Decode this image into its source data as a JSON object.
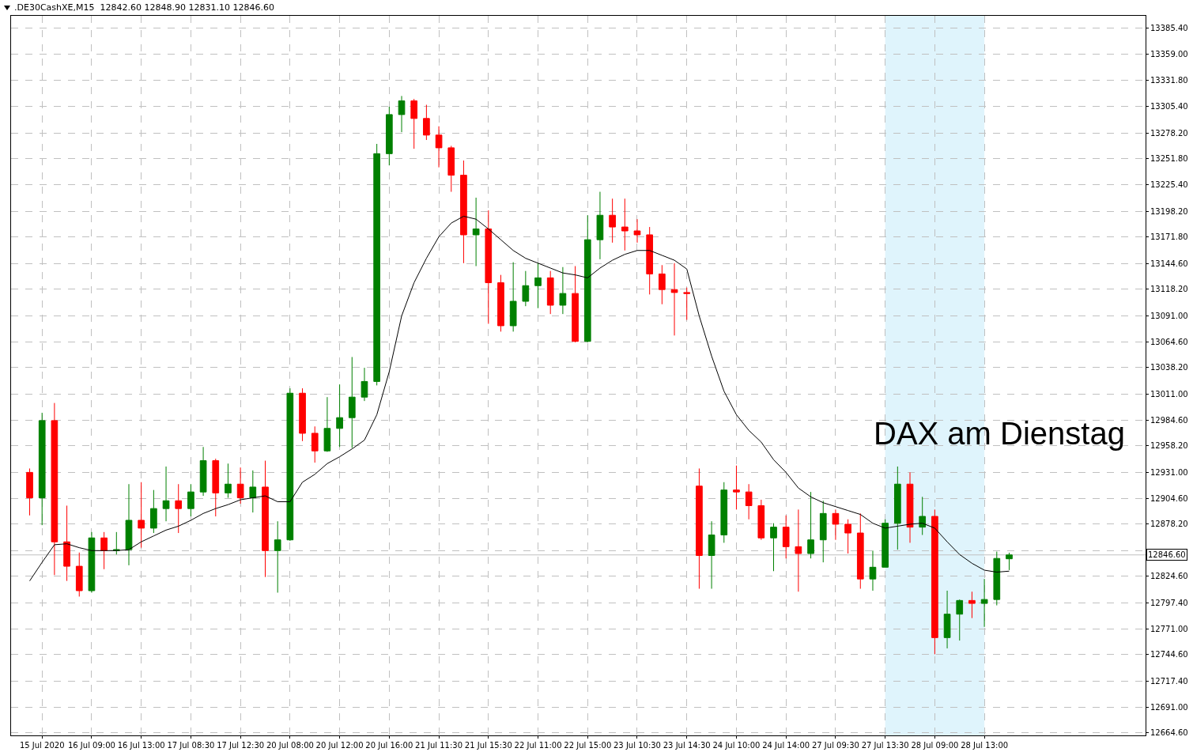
{
  "chart_data": {
    "type": "candlestick",
    "title": ".DE30CashXE,M15  12842.60 12848.90 12831.10 12846.60",
    "annotations": [
      "DAX am Dienstag"
    ],
    "categories": [
      null,
      "15 Jul 2020",
      null,
      null,
      null,
      "16 Jul 09:00",
      null,
      null,
      null,
      "16 Jul 13:00",
      null,
      null,
      null,
      "17 Jul 08:30",
      null,
      null,
      null,
      "17 Jul 12:30",
      null,
      null,
      null,
      "20 Jul 08:00",
      null,
      null,
      null,
      "20 Jul 12:00",
      null,
      null,
      null,
      "20 Jul 16:00",
      null,
      null,
      null,
      "21 Jul 11:30",
      null,
      null,
      null,
      "21 Jul 15:30",
      null,
      null,
      null,
      "22 Jul 11:00",
      null,
      null,
      null,
      "22 Jul 15:00",
      null,
      null,
      null,
      "23 Jul 10:30",
      null,
      null,
      null,
      "23 Jul 14:30",
      null,
      null,
      null,
      "24 Jul 10:00",
      null,
      null,
      null,
      "24 Jul 14:00",
      null,
      null,
      null,
      "27 Jul 09:30",
      null,
      null,
      null,
      "27 Jul 13:30",
      null,
      null,
      null,
      "28 Jul 09:00",
      null,
      null,
      null,
      "28 Jul 13:00",
      null,
      null
    ],
    "series": [
      {
        "color": "#008000",
        "ohlc": [
          null,
          [
            12905,
            12992,
            12877,
            12984
          ],
          null,
          null,
          null,
          [
            12810,
            12870,
            12808,
            12864
          ],
          null,
          [
            12851,
            12870,
            12847,
            12852
          ],
          [
            12852,
            12919,
            12836,
            12882
          ],
          null,
          [
            12874,
            12913,
            12869,
            12894
          ],
          [
            12894,
            12937,
            12881,
            12902
          ],
          null,
          [
            12894,
            12919,
            12886,
            12911
          ],
          [
            12911,
            12957,
            12907,
            12943
          ],
          null,
          [
            12910,
            12940,
            12905,
            12919
          ],
          null,
          [
            12905,
            12933,
            12890,
            12916
          ],
          null,
          [
            12851,
            12881,
            12808,
            12862
          ],
          [
            12862,
            13017,
            12861,
            13012
          ],
          null,
          null,
          [
            12953,
            13008,
            12952,
            12976
          ],
          [
            12976,
            13021,
            12957,
            12987
          ],
          [
            12987,
            13049,
            12956,
            13008
          ],
          [
            13008,
            13038,
            13004,
            13024
          ],
          [
            13024,
            13267,
            13020,
            13257
          ],
          [
            13257,
            13305,
            13245,
            13297
          ],
          [
            13297,
            13316,
            13279,
            13311
          ],
          null,
          null,
          null,
          null,
          null,
          [
            13174,
            13212,
            13142,
            13180
          ],
          null,
          null,
          [
            13081,
            13146,
            13075,
            13106
          ],
          [
            13106,
            13137,
            13101,
            13122
          ],
          [
            13122,
            13145,
            13099,
            13130
          ],
          null,
          [
            13102,
            13141,
            13093,
            13114
          ],
          null,
          [
            13065,
            13194,
            13064,
            13169
          ],
          [
            13169,
            13218,
            13149,
            13194
          ],
          null,
          null,
          null,
          null,
          null,
          null,
          null,
          null,
          [
            12846,
            12881,
            12812,
            12867
          ],
          [
            12867,
            12921,
            12859,
            12913
          ],
          null,
          null,
          null,
          [
            12864,
            12879,
            12830,
            12875
          ],
          null,
          null,
          [
            12848,
            12911,
            12843,
            12862
          ],
          [
            12862,
            12902,
            12839,
            12889
          ],
          null,
          null,
          null,
          [
            12822,
            12851,
            12810,
            12834
          ],
          [
            12834,
            12883,
            12834,
            12879
          ],
          [
            12879,
            12937,
            12852,
            12919
          ],
          null,
          [
            12875,
            12906,
            12867,
            12886
          ],
          null,
          [
            12762,
            12810,
            12751,
            12786
          ],
          [
            12786,
            12801,
            12759,
            12800
          ],
          null,
          [
            12797,
            12822,
            12773,
            12801
          ],
          [
            12801,
            12850,
            12795,
            12843
          ],
          [
            12842.6,
            12848.9,
            12831.1,
            12846.6
          ]
        ]
      },
      {
        "color": "#ff0000",
        "ohlc": [
          [
            12931,
            12935,
            12887,
            12905
          ],
          null,
          [
            12984,
            13002,
            12826,
            12860
          ],
          [
            12860,
            12897,
            12820,
            12835
          ],
          [
            12835,
            12849,
            12804,
            12810
          ],
          null,
          [
            12864,
            12870,
            12832,
            12851
          ],
          null,
          null,
          [
            12882,
            12921,
            12854,
            12874
          ],
          null,
          null,
          [
            12902,
            12919,
            12869,
            12894
          ],
          null,
          null,
          [
            12943,
            12945,
            12886,
            12910
          ],
          null,
          [
            12919,
            12936,
            12899,
            12905
          ],
          null,
          [
            12916,
            12943,
            12824,
            12851
          ],
          null,
          null,
          [
            13012,
            13017,
            12963,
            12971
          ],
          [
            12971,
            12978,
            12941,
            12953
          ],
          null,
          null,
          null,
          null,
          null,
          null,
          null,
          [
            13311,
            13313,
            13262,
            13293
          ],
          [
            13293,
            13307,
            13271,
            13276
          ],
          [
            13276,
            13285,
            13243,
            13263
          ],
          [
            13263,
            13265,
            13218,
            13235
          ],
          [
            13235,
            13250,
            13145,
            13174
          ],
          null,
          [
            13180,
            13199,
            13083,
            13125
          ],
          [
            13125,
            13133,
            13075,
            13081
          ],
          null,
          null,
          null,
          [
            13130,
            13137,
            13093,
            13102
          ],
          null,
          [
            13114,
            13142,
            13064,
            13065
          ],
          null,
          null,
          [
            13194,
            13211,
            13166,
            13182
          ],
          [
            13182,
            13211,
            13158,
            13178
          ],
          [
            13178,
            13190,
            13166,
            13174
          ],
          [
            13174,
            13182,
            13113,
            13134
          ],
          [
            13134,
            13143,
            13103,
            13118
          ],
          [
            13118,
            13145,
            13071,
            13115
          ],
          [
            13115,
            13120,
            13087,
            13114
          ],
          [
            12917,
            12935,
            12812,
            12846
          ],
          null,
          null,
          [
            12913,
            12938,
            12893,
            12911
          ],
          [
            12911,
            12919,
            12883,
            12897
          ],
          [
            12897,
            12903,
            12862,
            12864
          ],
          null,
          [
            12875,
            12887,
            12843,
            12855
          ],
          [
            12855,
            12893,
            12809,
            12848
          ],
          null,
          null,
          [
            12889,
            12893,
            12862,
            12878
          ],
          [
            12878,
            12883,
            12848,
            12869
          ],
          [
            12869,
            12889,
            12812,
            12822
          ],
          null,
          null,
          null,
          [
            12919,
            12931,
            12859,
            12875
          ],
          null,
          [
            12886,
            12893,
            12745,
            12762
          ],
          null,
          null,
          [
            12800,
            12809,
            12782,
            12797
          ],
          null,
          null,
          null
        ]
      },
      {
        "type": "line",
        "color": "#000000",
        "values": [
          12820,
          12839,
          12857,
          12858,
          12854,
          12851,
          12851,
          12851,
          12852,
          12860,
          12866,
          12872,
          12876,
          12882,
          12889,
          12894,
          12898,
          12903,
          12905,
          12907,
          12901,
          12901,
          12921,
          12929,
          12940,
          12947,
          12955,
          12964,
          12990,
          13034,
          13091,
          13125,
          13150,
          13172,
          13186,
          13193,
          13190,
          13180,
          13169,
          13158,
          13150,
          13145,
          13140,
          13135,
          13133,
          13130,
          13140,
          13148,
          13154,
          13158,
          13158,
          13153,
          13148,
          13139,
          13091,
          13050,
          13014,
          12990,
          12974,
          12962,
          12944,
          12931,
          12915,
          12906,
          12900,
          12896,
          12892,
          12888,
          12879,
          12874,
          12876,
          12878,
          12879,
          12874,
          12860,
          12847,
          12838,
          12831,
          12829,
          12830
        ]
      }
    ],
    "ylim": [
      12662,
      13398
    ],
    "yticks": [
      {
        "value": 12664.6,
        "label": "12664.60"
      },
      {
        "value": 12691,
        "label": "12691.00"
      },
      {
        "value": 12717.4,
        "label": "12717.40"
      },
      {
        "value": 12744.6,
        "label": "12744.60"
      },
      {
        "value": 12771,
        "label": "12771.00"
      },
      {
        "value": 12797.4,
        "label": "12797.40"
      },
      {
        "value": 12824.6,
        "label": "12824.60"
      },
      {
        "value": 12851,
        "label": null
      },
      {
        "value": 12878.2,
        "label": "12878.20"
      },
      {
        "value": 12904.6,
        "label": "12904.60"
      },
      {
        "value": 12931,
        "label": "12931.00"
      },
      {
        "value": 12958.2,
        "label": "12958.20"
      },
      {
        "value": 12984.6,
        "label": "12984.60"
      },
      {
        "value": 13011,
        "label": "13011.00"
      },
      {
        "value": 13038.2,
        "label": "13038.20"
      },
      {
        "value": 13064.6,
        "label": "13064.60"
      },
      {
        "value": 13091,
        "label": "13091.00"
      },
      {
        "value": 13118.2,
        "label": "13118.20"
      },
      {
        "value": 13144.6,
        "label": "13144.60"
      },
      {
        "value": 13171.8,
        "label": "13171.80"
      },
      {
        "value": 13198.2,
        "label": "13198.20"
      },
      {
        "value": 13225.4,
        "label": "13225.40"
      },
      {
        "value": 13251.8,
        "label": "13251.80"
      },
      {
        "value": 13278.2,
        "label": "13278.20"
      },
      {
        "value": 13305.4,
        "label": "13305.40"
      },
      {
        "value": 13331.8,
        "label": "13331.80"
      },
      {
        "value": 13359,
        "label": "13359.00"
      },
      {
        "value": 13385.4,
        "label": "13385.40"
      }
    ],
    "ref_lines": [
      {
        "axis": "y",
        "value": 12846.6,
        "label": "12846.60",
        "color": "#c0c0c0"
      }
    ],
    "bands": [
      {
        "axis": "x",
        "from": "27 Jul 13:30",
        "to": "28 Jul 13:00",
        "color": "#dff4fc"
      }
    ],
    "grid": true
  }
}
